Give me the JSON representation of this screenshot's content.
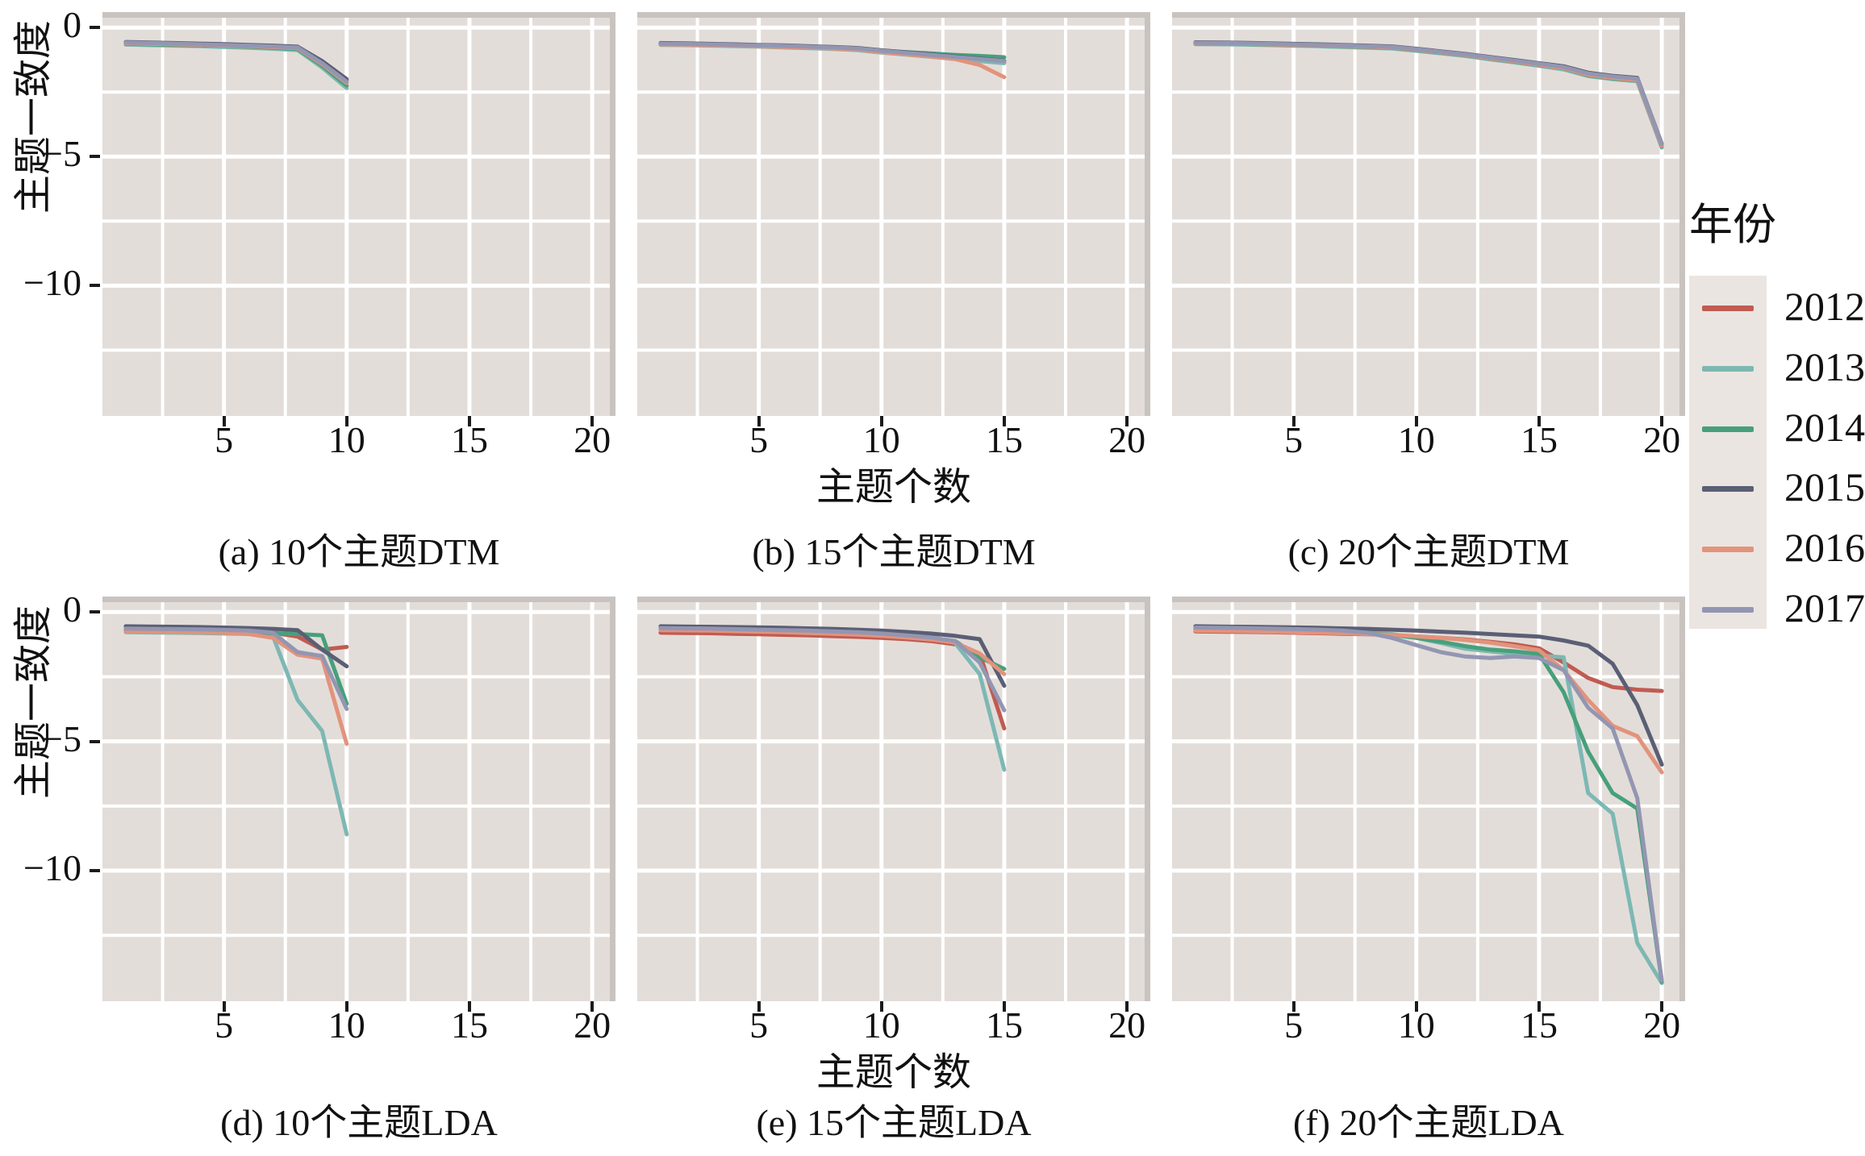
{
  "figure": {
    "y_axis_label": "主题一致度",
    "x_axis_label": "主题个数",
    "y_ticks": [
      {
        "v": 0,
        "label": "0"
      },
      {
        "v": -5,
        "label": "−5"
      },
      {
        "v": -10,
        "label": "−10"
      }
    ],
    "x_ticks": [
      {
        "v": 5,
        "label": "5"
      },
      {
        "v": 10,
        "label": "10"
      },
      {
        "v": 15,
        "label": "15"
      },
      {
        "v": 20,
        "label": "20"
      }
    ],
    "panel_bg": "#E3DDD9",
    "grid_color": "#FFFFFF",
    "edge_strip_color": "#C9C3C0",
    "legend": {
      "title": "年份",
      "key_bg": "#EBE5E1",
      "entries": [
        {
          "label": "2012",
          "color": "#C05B52"
        },
        {
          "label": "2013",
          "color": "#7DB8B3"
        },
        {
          "label": "2014",
          "color": "#47A07B"
        },
        {
          "label": "2015",
          "color": "#5A5F75"
        },
        {
          "label": "2016",
          "color": "#E2937C"
        },
        {
          "label": "2017",
          "color": "#9396B2"
        }
      ]
    }
  },
  "chart_data": [
    {
      "type": "line",
      "id": "a",
      "caption": "(a) 10个主题DTM",
      "model": "DTM",
      "topics": 10,
      "xlabel": "主题个数",
      "ylabel": "主题一致度",
      "xlim": [
        0.05,
        20.95
      ],
      "ylim": [
        -15.05,
        0.6
      ],
      "x_major": [
        5,
        10,
        15,
        20
      ],
      "x_minor": [
        2.5,
        7.5,
        12.5,
        17.5
      ],
      "y_major": [
        0,
        -5,
        -10
      ],
      "y_minor": [
        -2.5,
        -7.5,
        -12.5
      ],
      "x": [
        1,
        2,
        3,
        4,
        5,
        6,
        7,
        8,
        9,
        10
      ],
      "series": [
        {
          "name": "2012",
          "values": [
            -0.6,
            -0.62,
            -0.64,
            -0.66,
            -0.68,
            -0.7,
            -0.73,
            -0.77,
            -1.35,
            -2.05
          ]
        },
        {
          "name": "2013",
          "values": [
            -0.66,
            -0.68,
            -0.7,
            -0.72,
            -0.75,
            -0.78,
            -0.82,
            -0.87,
            -1.55,
            -2.35
          ]
        },
        {
          "name": "2014",
          "values": [
            -0.63,
            -0.65,
            -0.67,
            -0.69,
            -0.71,
            -0.74,
            -0.78,
            -0.83,
            -1.48,
            -2.25
          ]
        },
        {
          "name": "2015",
          "values": [
            -0.56,
            -0.58,
            -0.6,
            -0.62,
            -0.64,
            -0.67,
            -0.7,
            -0.74,
            -1.3,
            -2.0
          ]
        },
        {
          "name": "2016",
          "values": [
            -0.61,
            -0.63,
            -0.65,
            -0.67,
            -0.7,
            -0.72,
            -0.76,
            -0.8,
            -1.42,
            -2.15
          ]
        },
        {
          "name": "2017",
          "values": [
            -0.58,
            -0.6,
            -0.62,
            -0.65,
            -0.67,
            -0.7,
            -0.73,
            -0.77,
            -1.38,
            -2.1
          ]
        }
      ]
    },
    {
      "type": "line",
      "id": "b",
      "caption": "(b) 15个主题DTM",
      "model": "DTM",
      "topics": 15,
      "x": [
        1,
        2,
        3,
        4,
        5,
        6,
        7,
        8,
        9,
        10,
        11,
        12,
        13,
        14,
        15
      ],
      "series": [
        {
          "name": "2012",
          "values": [
            -0.63,
            -0.64,
            -0.66,
            -0.68,
            -0.7,
            -0.72,
            -0.75,
            -0.78,
            -0.82,
            -0.92,
            -1.0,
            -1.08,
            -1.16,
            -1.24,
            -1.32
          ]
        },
        {
          "name": "2013",
          "values": [
            -0.67,
            -0.68,
            -0.7,
            -0.72,
            -0.74,
            -0.77,
            -0.8,
            -0.83,
            -0.87,
            -0.97,
            -1.05,
            -1.13,
            -1.22,
            -1.3,
            -1.38
          ]
        },
        {
          "name": "2014",
          "values": [
            -0.64,
            -0.65,
            -0.67,
            -0.69,
            -0.71,
            -0.73,
            -0.76,
            -0.79,
            -0.83,
            -0.9,
            -0.95,
            -1.0,
            -1.06,
            -1.1,
            -1.15
          ]
        },
        {
          "name": "2015",
          "values": [
            -0.6,
            -0.61,
            -0.63,
            -0.65,
            -0.67,
            -0.69,
            -0.72,
            -0.75,
            -0.79,
            -0.88,
            -0.96,
            -1.04,
            -1.12,
            -1.2,
            -1.28
          ]
        },
        {
          "name": "2016",
          "values": [
            -0.65,
            -0.66,
            -0.68,
            -0.7,
            -0.72,
            -0.75,
            -0.78,
            -0.81,
            -0.85,
            -0.95,
            -1.03,
            -1.12,
            -1.22,
            -1.45,
            -1.92
          ]
        },
        {
          "name": "2017",
          "values": [
            -0.62,
            -0.63,
            -0.65,
            -0.67,
            -0.69,
            -0.71,
            -0.74,
            -0.77,
            -0.81,
            -0.9,
            -0.98,
            -1.06,
            -1.14,
            -1.22,
            -1.3
          ]
        }
      ]
    },
    {
      "type": "line",
      "id": "c",
      "caption": "(c) 20个主题DTM",
      "model": "DTM",
      "topics": 20,
      "x": [
        1,
        2,
        3,
        4,
        5,
        6,
        7,
        8,
        9,
        10,
        11,
        12,
        13,
        14,
        15,
        16,
        17,
        18,
        19,
        20
      ],
      "series": [
        {
          "name": "2012",
          "values": [
            -0.6,
            -0.61,
            -0.62,
            -0.64,
            -0.66,
            -0.68,
            -0.7,
            -0.73,
            -0.76,
            -0.85,
            -0.95,
            -1.05,
            -1.18,
            -1.3,
            -1.42,
            -1.55,
            -1.8,
            -1.92,
            -2.0,
            -4.55
          ]
        },
        {
          "name": "2013",
          "values": [
            -0.64,
            -0.65,
            -0.66,
            -0.68,
            -0.7,
            -0.72,
            -0.75,
            -0.78,
            -0.81,
            -0.9,
            -1.0,
            -1.1,
            -1.23,
            -1.35,
            -1.48,
            -1.62,
            -1.88,
            -2.0,
            -2.08,
            -4.65
          ]
        },
        {
          "name": "2014",
          "values": [
            -0.62,
            -0.63,
            -0.64,
            -0.66,
            -0.68,
            -0.7,
            -0.72,
            -0.75,
            -0.78,
            -0.87,
            -0.97,
            -1.07,
            -1.2,
            -1.32,
            -1.45,
            -1.58,
            -1.85,
            -1.97,
            -2.05,
            -4.6
          ]
        },
        {
          "name": "2015",
          "values": [
            -0.57,
            -0.58,
            -0.59,
            -0.61,
            -0.63,
            -0.65,
            -0.67,
            -0.7,
            -0.73,
            -0.82,
            -0.92,
            -1.02,
            -1.14,
            -1.26,
            -1.38,
            -1.5,
            -1.75,
            -1.87,
            -1.95,
            -4.5
          ]
        },
        {
          "name": "2016",
          "values": [
            -0.61,
            -0.62,
            -0.63,
            -0.65,
            -0.67,
            -0.69,
            -0.71,
            -0.74,
            -0.77,
            -0.86,
            -0.96,
            -1.06,
            -1.19,
            -1.31,
            -1.44,
            -1.57,
            -1.83,
            -1.95,
            -2.03,
            -4.58
          ]
        },
        {
          "name": "2017",
          "values": [
            -0.59,
            -0.6,
            -0.61,
            -0.63,
            -0.65,
            -0.67,
            -0.69,
            -0.72,
            -0.75,
            -0.84,
            -0.94,
            -1.04,
            -1.16,
            -1.28,
            -1.4,
            -1.53,
            -1.78,
            -1.9,
            -1.98,
            -4.52
          ]
        }
      ]
    },
    {
      "type": "line",
      "id": "d",
      "caption": "(d) 10个主题LDA",
      "model": "LDA",
      "topics": 10,
      "x": [
        1,
        2,
        3,
        4,
        5,
        6,
        7,
        8,
        9,
        10
      ],
      "series": [
        {
          "name": "2012",
          "values": [
            -0.7,
            -0.71,
            -0.72,
            -0.73,
            -0.74,
            -0.76,
            -0.8,
            -0.95,
            -1.45,
            -1.35
          ]
        },
        {
          "name": "2013",
          "values": [
            -0.78,
            -0.79,
            -0.8,
            -0.81,
            -0.83,
            -0.85,
            -0.95,
            -3.4,
            -4.6,
            -8.6
          ]
        },
        {
          "name": "2014",
          "values": [
            -0.72,
            -0.73,
            -0.74,
            -0.75,
            -0.76,
            -0.78,
            -0.82,
            -0.85,
            -0.9,
            -3.55
          ]
        },
        {
          "name": "2015",
          "values": [
            -0.55,
            -0.56,
            -0.57,
            -0.58,
            -0.6,
            -0.62,
            -0.65,
            -0.7,
            -1.45,
            -2.1
          ]
        },
        {
          "name": "2016",
          "values": [
            -0.75,
            -0.76,
            -0.77,
            -0.78,
            -0.8,
            -0.85,
            -1.0,
            -1.65,
            -1.8,
            -5.1
          ]
        },
        {
          "name": "2017",
          "values": [
            -0.64,
            -0.65,
            -0.66,
            -0.67,
            -0.69,
            -0.72,
            -0.8,
            -1.55,
            -1.7,
            -3.75
          ]
        }
      ]
    },
    {
      "type": "line",
      "id": "e",
      "caption": "(e) 15个主题LDA",
      "model": "LDA",
      "topics": 15,
      "x": [
        1,
        2,
        3,
        4,
        5,
        6,
        7,
        8,
        9,
        10,
        11,
        12,
        13,
        14,
        15
      ],
      "series": [
        {
          "name": "2012",
          "values": [
            -0.8,
            -0.81,
            -0.82,
            -0.84,
            -0.86,
            -0.88,
            -0.9,
            -0.93,
            -0.96,
            -1.0,
            -1.05,
            -1.12,
            -1.25,
            -1.6,
            -4.5
          ]
        },
        {
          "name": "2013",
          "values": [
            -0.6,
            -0.61,
            -0.62,
            -0.63,
            -0.65,
            -0.67,
            -0.69,
            -0.72,
            -0.75,
            -0.8,
            -0.86,
            -0.95,
            -1.2,
            -2.4,
            -6.1
          ]
        },
        {
          "name": "2014",
          "values": [
            -0.65,
            -0.66,
            -0.67,
            -0.68,
            -0.7,
            -0.72,
            -0.74,
            -0.77,
            -0.8,
            -0.85,
            -0.92,
            -1.0,
            -1.12,
            -1.75,
            -2.2
          ]
        },
        {
          "name": "2015",
          "values": [
            -0.55,
            -0.56,
            -0.57,
            -0.58,
            -0.59,
            -0.61,
            -0.63,
            -0.65,
            -0.68,
            -0.72,
            -0.77,
            -0.83,
            -0.92,
            -1.05,
            -2.85
          ]
        },
        {
          "name": "2016",
          "values": [
            -0.7,
            -0.71,
            -0.72,
            -0.74,
            -0.76,
            -0.78,
            -0.81,
            -0.84,
            -0.87,
            -0.92,
            -0.98,
            -1.06,
            -1.18,
            -1.6,
            -2.4
          ]
        },
        {
          "name": "2017",
          "values": [
            -0.62,
            -0.63,
            -0.64,
            -0.66,
            -0.68,
            -0.7,
            -0.72,
            -0.75,
            -0.78,
            -0.83,
            -0.9,
            -0.98,
            -1.12,
            -1.95,
            -3.8
          ]
        }
      ]
    },
    {
      "type": "line",
      "id": "f",
      "caption": "(f) 20个主题LDA",
      "model": "LDA",
      "topics": 20,
      "x": [
        1,
        2,
        3,
        4,
        5,
        6,
        7,
        8,
        9,
        10,
        11,
        12,
        13,
        14,
        15,
        16,
        17,
        18,
        19,
        20
      ],
      "series": [
        {
          "name": "2012",
          "values": [
            -0.75,
            -0.76,
            -0.77,
            -0.78,
            -0.8,
            -0.82,
            -0.84,
            -0.86,
            -0.89,
            -0.95,
            -1.0,
            -1.06,
            -1.15,
            -1.25,
            -1.4,
            -1.95,
            -2.55,
            -2.9,
            -3.0,
            -3.05
          ]
        },
        {
          "name": "2013",
          "values": [
            -0.65,
            -0.66,
            -0.67,
            -0.68,
            -0.7,
            -0.72,
            -0.75,
            -0.78,
            -0.85,
            -1.0,
            -1.2,
            -1.42,
            -1.52,
            -1.62,
            -1.68,
            -1.75,
            -7.0,
            -7.8,
            -12.8,
            -14.35
          ]
        },
        {
          "name": "2014",
          "values": [
            -0.68,
            -0.69,
            -0.7,
            -0.71,
            -0.73,
            -0.75,
            -0.78,
            -0.82,
            -0.88,
            -1.0,
            -1.15,
            -1.32,
            -1.45,
            -1.52,
            -1.62,
            -3.1,
            -5.4,
            -7.0,
            -7.6,
            -14.3
          ]
        },
        {
          "name": "2015",
          "values": [
            -0.55,
            -0.56,
            -0.57,
            -0.58,
            -0.59,
            -0.61,
            -0.63,
            -0.65,
            -0.68,
            -0.72,
            -0.76,
            -0.8,
            -0.85,
            -0.9,
            -0.95,
            -1.1,
            -1.3,
            -2.0,
            -3.6,
            -5.9
          ]
        },
        {
          "name": "2016",
          "values": [
            -0.72,
            -0.73,
            -0.74,
            -0.76,
            -0.78,
            -0.8,
            -0.82,
            -0.85,
            -0.88,
            -0.94,
            -1.0,
            -1.08,
            -1.18,
            -1.32,
            -1.48,
            -2.25,
            -3.4,
            -4.4,
            -4.8,
            -6.2
          ]
        },
        {
          "name": "2017",
          "values": [
            -0.6,
            -0.61,
            -0.62,
            -0.64,
            -0.66,
            -0.68,
            -0.72,
            -0.8,
            -1.0,
            -1.28,
            -1.55,
            -1.72,
            -1.78,
            -1.72,
            -1.78,
            -2.25,
            -3.7,
            -4.5,
            -7.2,
            -14.25
          ]
        }
      ]
    }
  ]
}
